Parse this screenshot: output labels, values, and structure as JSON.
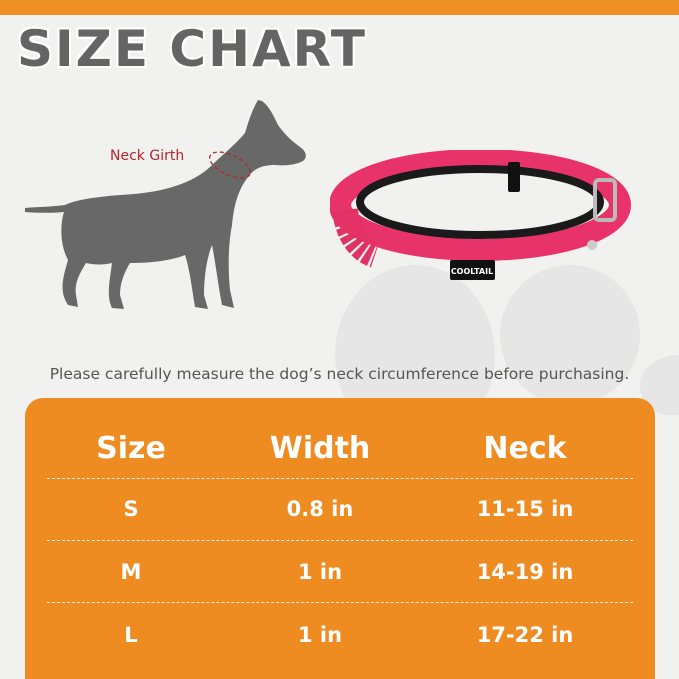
{
  "title": "SIZE CHART",
  "neck_girth_label": "Neck Girth",
  "brand_tag": "COOLTAIL",
  "caption": "Please carefully measure the dog’s neck circumference before purchasing.",
  "colors": {
    "accent": "#ee8c22",
    "title": "#646464",
    "girth_label": "#b3262c",
    "collar": "#e8336a"
  },
  "table": {
    "headers": [
      "Size",
      "Width",
      "Neck"
    ],
    "rows": [
      [
        "S",
        "0.8 in",
        "11-15 in"
      ],
      [
        "M",
        "1 in",
        "14-19 in"
      ],
      [
        "L",
        "1 in",
        "17-22 in"
      ]
    ]
  }
}
